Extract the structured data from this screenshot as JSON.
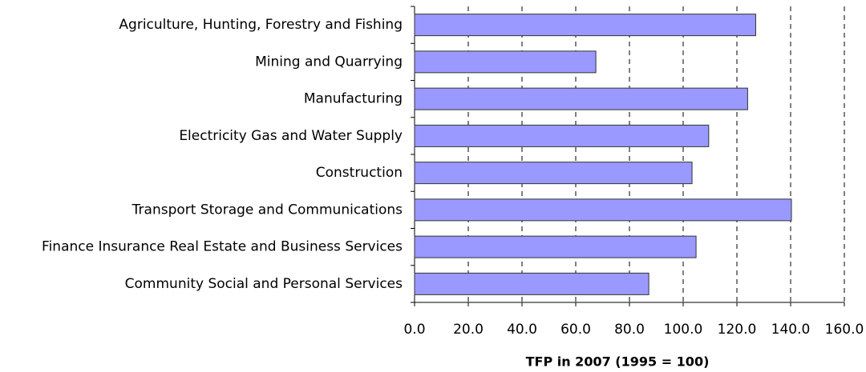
{
  "chart_data": {
    "type": "bar",
    "orientation": "horizontal",
    "x_label": "TFP in 2007 (1995 = 100)",
    "categories": [
      "Agriculture, Hunting, Forestry and Fishing",
      "Mining and Quarrying",
      "Manufacturing",
      "Electricity Gas and Water Supply",
      "Construction",
      "Transport Storage and Communications",
      "Finance Insurance Real Estate and Business Services",
      "Community Social and Personal Services"
    ],
    "values": [
      127,
      67.5,
      124,
      109.5,
      103.3,
      140.3,
      104.8,
      87.2
    ],
    "color": "#9999ff",
    "xlim": [
      0,
      160
    ],
    "xticks": [
      {
        "value": 0,
        "label": "0.0"
      },
      {
        "value": 20,
        "label": "20.0"
      },
      {
        "value": 40,
        "label": "40.0"
      },
      {
        "value": 60,
        "label": "60.0"
      },
      {
        "value": 80,
        "label": "80.0"
      },
      {
        "value": 100,
        "label": "100.0"
      },
      {
        "value": 120,
        "label": "120.0"
      },
      {
        "value": 140,
        "label": "140.0"
      },
      {
        "value": 160,
        "label": "160.0"
      }
    ],
    "grid": true
  }
}
